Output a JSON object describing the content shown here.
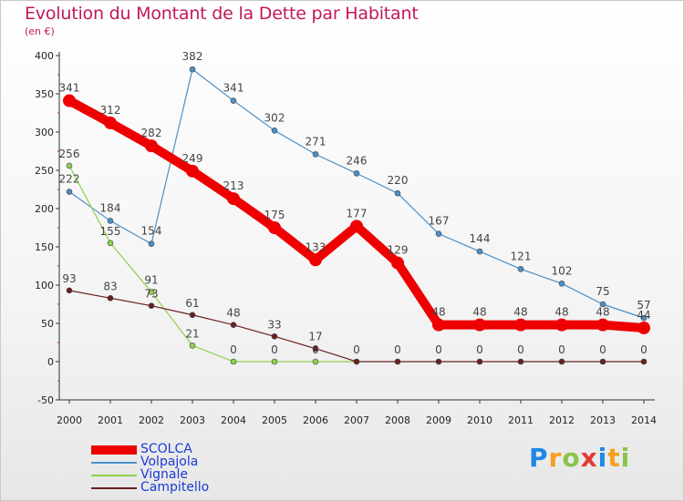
{
  "title": "Evolution du Montant de la Dette par Habitant",
  "subtitle": "(en €)",
  "logo": {
    "text": "Proxiti",
    "letters": [
      {
        "ch": "P",
        "color": "#1e88e5"
      },
      {
        "ch": "r",
        "color": "#f4a020"
      },
      {
        "ch": "o",
        "color": "#8bc34a"
      },
      {
        "ch": "x",
        "color": "#e53935"
      },
      {
        "ch": "i",
        "color": "#1e88e5"
      },
      {
        "ch": "t",
        "color": "#f4a020"
      },
      {
        "ch": "i",
        "color": "#8bc34a"
      }
    ]
  },
  "chart_data": {
    "type": "line",
    "title": "Evolution du Montant de la Dette par Habitant",
    "ylabel": "(en €)",
    "x": [
      "2000",
      "2001",
      "2002",
      "2003",
      "2004",
      "2005",
      "2006",
      "2007",
      "2008",
      "2009",
      "2010",
      "2011",
      "2012",
      "2013",
      "2014"
    ],
    "ylim": [
      -50,
      400
    ],
    "yticks": [
      -50,
      0,
      50,
      100,
      150,
      200,
      250,
      300,
      350,
      400
    ],
    "grid": false,
    "legend_placement": "bottom-left",
    "series": [
      {
        "name": "SCOLCA",
        "color": "#ee0000",
        "emphasis": true,
        "values": [
          341,
          312,
          282,
          249,
          213,
          175,
          133,
          177,
          129,
          48,
          48,
          48,
          48,
          48,
          44
        ],
        "labels": [
          "341",
          "312",
          "282",
          "249",
          "213",
          "175",
          "133",
          "177",
          "129",
          "48",
          "48",
          "48",
          "48",
          "48",
          "44"
        ]
      },
      {
        "name": "Volpajola",
        "color": "#4a90c8",
        "emphasis": false,
        "values": [
          222,
          184,
          154,
          382,
          341,
          302,
          271,
          246,
          220,
          167,
          144,
          121,
          102,
          75,
          57
        ],
        "labels": [
          "222",
          "184",
          "154",
          "382",
          "341",
          "302",
          "271",
          "246",
          "220",
          "167",
          "144",
          "121",
          "102",
          "75",
          "57"
        ]
      },
      {
        "name": "Vignale",
        "color": "#8ed04a",
        "emphasis": false,
        "values": [
          256,
          155,
          91,
          21,
          0,
          0,
          0,
          null,
          null,
          null,
          null,
          null,
          null,
          null,
          null
        ],
        "labels": [
          "256",
          "155",
          "91",
          "21",
          "0",
          "0",
          "0",
          "",
          "",
          "",
          "",
          "",
          "",
          "",
          ""
        ]
      },
      {
        "name": "Campitello",
        "color": "#6b1f1f",
        "emphasis": false,
        "values": [
          93,
          83,
          73,
          61,
          48,
          33,
          17,
          0,
          0,
          0,
          0,
          0,
          0,
          0,
          0
        ],
        "labels": [
          "93",
          "83",
          "73",
          "61",
          "48",
          "33",
          "17",
          "0",
          "0",
          "0",
          "0",
          "0",
          "0",
          "0",
          "0"
        ]
      }
    ]
  }
}
